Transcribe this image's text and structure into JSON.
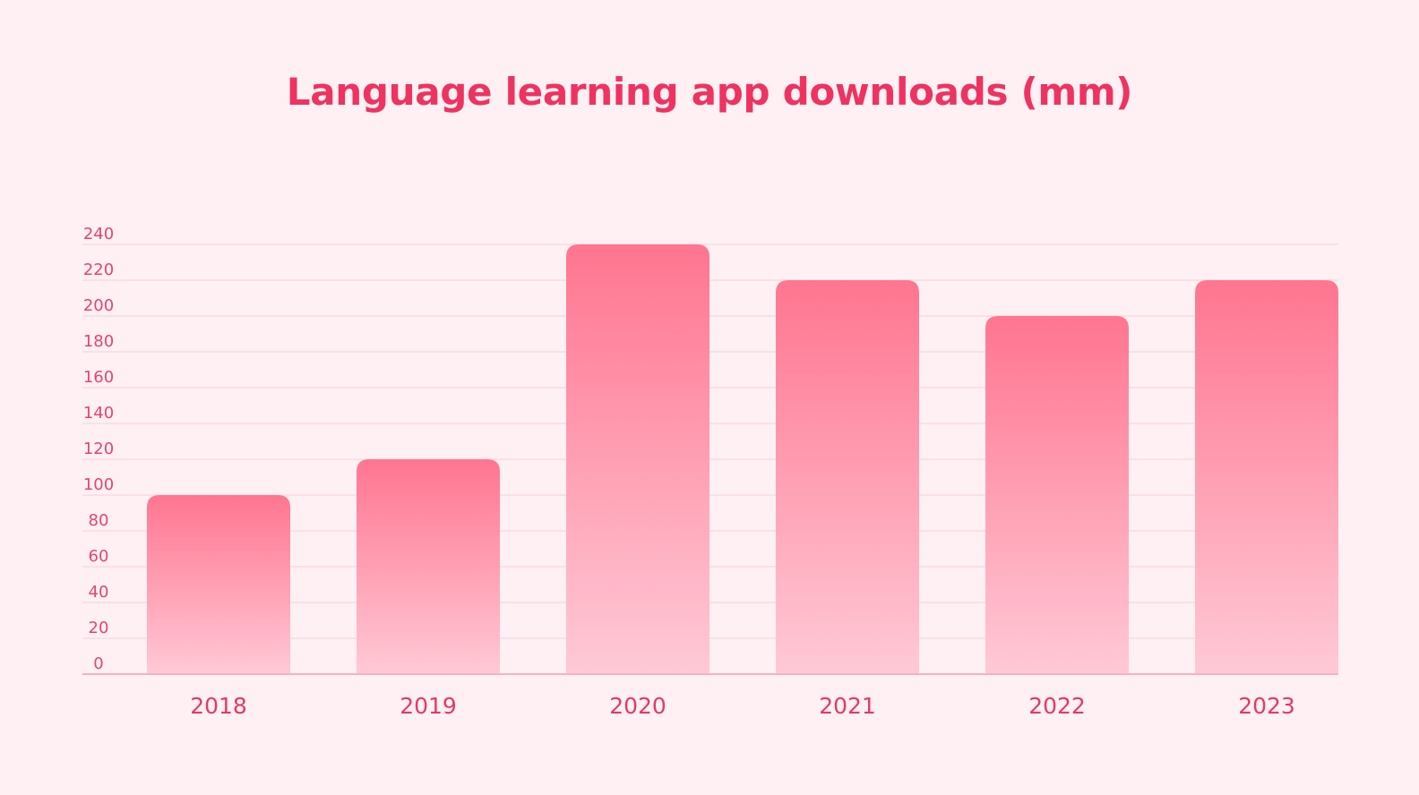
{
  "chart_data": {
    "type": "bar",
    "title": "Language learning app downloads (mm)",
    "categories": [
      "2018",
      "2019",
      "2020",
      "2021",
      "2022",
      "2023"
    ],
    "values": [
      100,
      120,
      240,
      220,
      200,
      220
    ],
    "ylim": [
      0,
      240
    ],
    "yticks": [
      "0",
      "20",
      "40",
      "60",
      "80",
      "100",
      "120",
      "140",
      "160",
      "180",
      "200",
      "220",
      "240"
    ],
    "grid": true,
    "colors": {
      "background": "#fff0f3",
      "title": "#ee3361",
      "bar_top": "#ff7590",
      "bar_bottom": "#ffc9d6",
      "gridline": "#f9dbe2",
      "axis": "#f2b3c2",
      "labels": "#e3466c"
    }
  }
}
